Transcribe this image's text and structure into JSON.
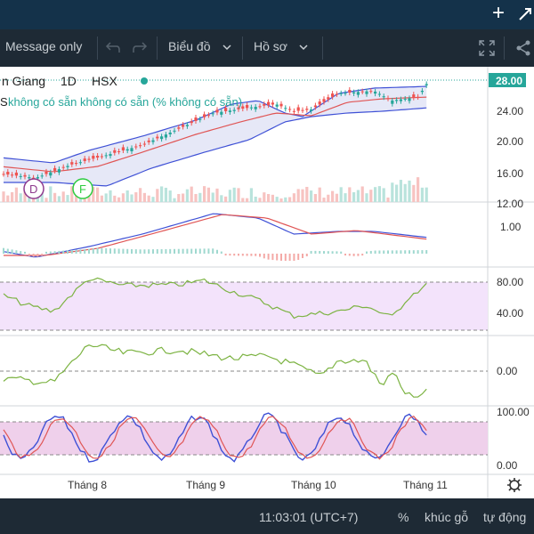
{
  "topbar": {
    "plus_icon": "+",
    "expand_icon": "expand-icon"
  },
  "toolbar": {
    "message_only": "Message only",
    "chart_menu": "Biểu đồ",
    "profile_menu": "Hồ sơ"
  },
  "legend": {
    "symbol_text": "n Giang",
    "interval": "1D",
    "exchange": "HSX",
    "indicator_prefix": "S",
    "indicator_values": "không có sẵn  không có sẵn  (% không có sẵn)"
  },
  "price_badge": "28.00",
  "events": [
    {
      "label": "D",
      "color": "#8e3b8e"
    },
    {
      "label": "F",
      "color": "#2ecc40"
    }
  ],
  "axes": {
    "main_ticks": [
      "24.00",
      "20.00",
      "16.00",
      "12.00"
    ],
    "macd_ticks": [
      "1.00"
    ],
    "rsi_ticks": [
      "80.00",
      "40.00"
    ],
    "cci_ticks": [
      "0.00"
    ],
    "stoch_ticks": [
      "100.00",
      "0.00"
    ],
    "time_ticks": [
      "Tháng 8",
      "Tháng 9",
      "Tháng 10",
      "Tháng 11"
    ]
  },
  "status": {
    "time": "11:03:01 (UTC+7)",
    "percent": "%",
    "log": "khúc gỗ",
    "auto": "tự động"
  },
  "colors": {
    "up": "#26a69a",
    "down": "#ef5350",
    "band": "#3f51d6",
    "ma": "#e05555",
    "rsi": "#7cb342",
    "rsi_bg": "#f3e3fb",
    "stoch_bg": "#efd0eb"
  }
}
